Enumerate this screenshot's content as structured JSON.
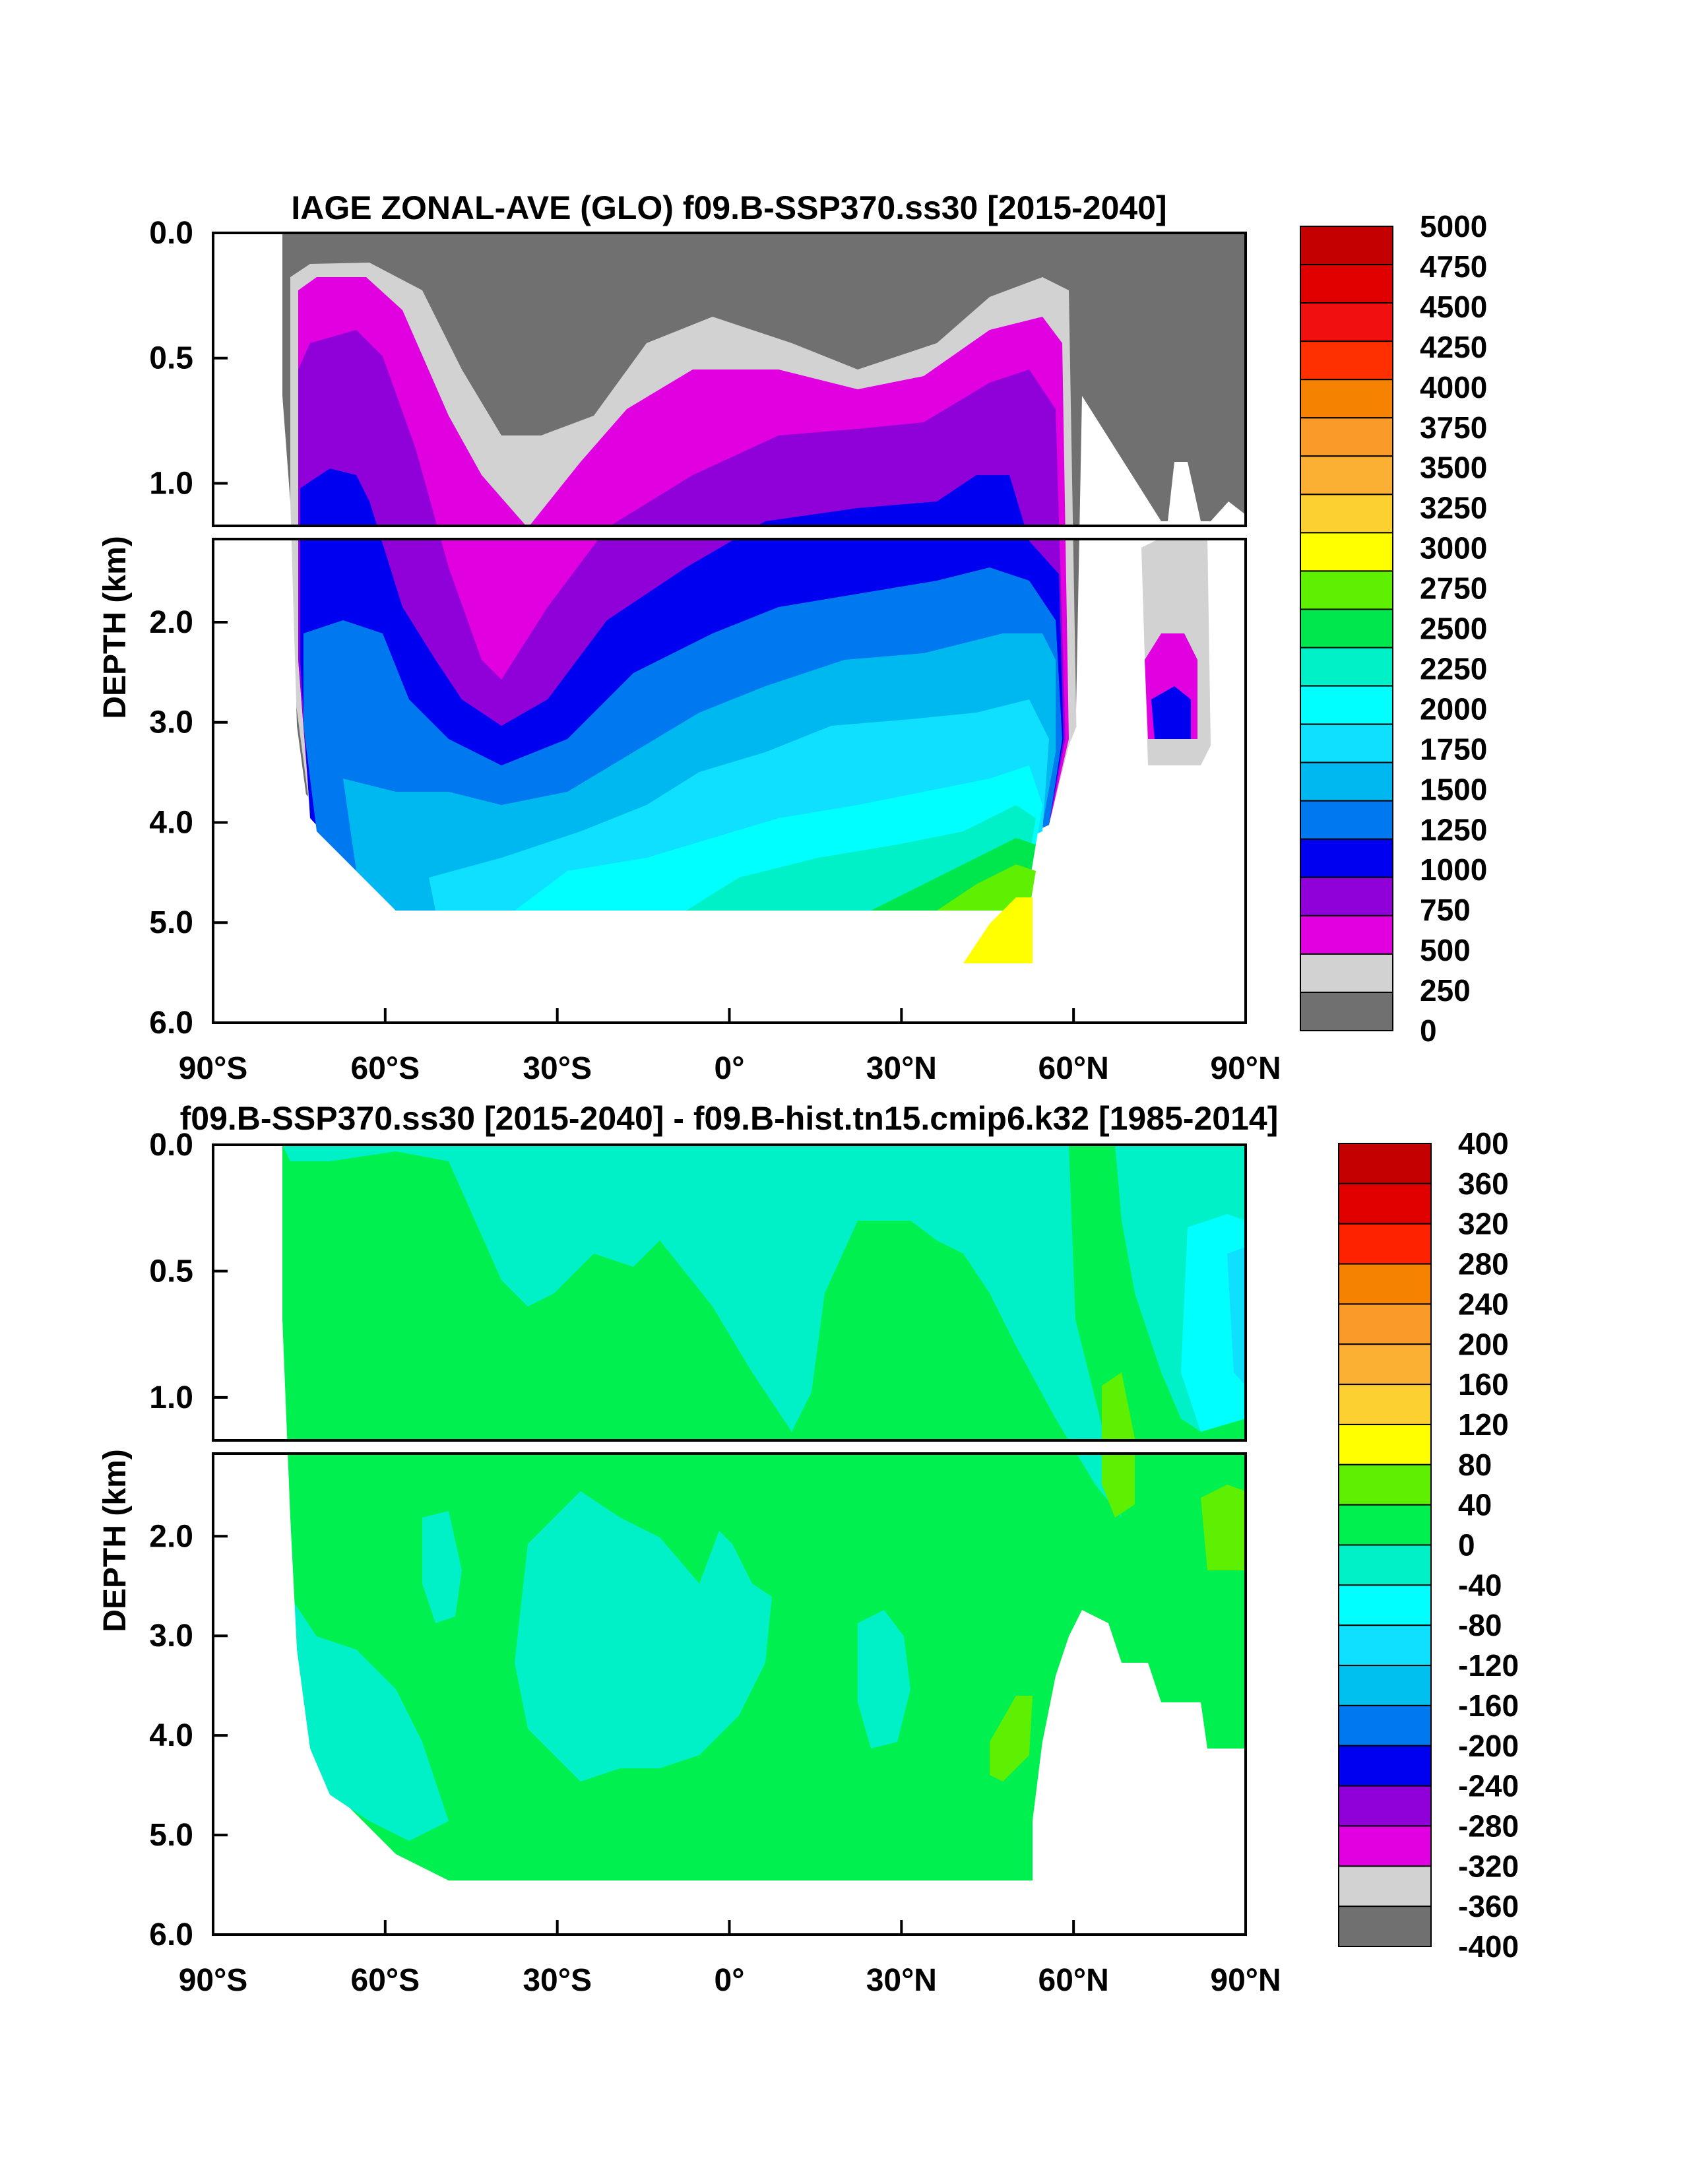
{
  "chart_data": [
    {
      "type": "heatmap",
      "title": "IAGE ZONAL-AVE (GLO) f09.B-SSP370.ss30 [2015-2040]",
      "xlabel": "",
      "ylabel": "DEPTH (km)",
      "xlim": [
        -90,
        90
      ],
      "ylim": [
        6.0,
        0.0
      ],
      "x_ticks": [
        "90°S",
        "60°S",
        "30°S",
        "0°",
        "30°N",
        "60°N",
        "90°N"
      ],
      "y_ticks_upper": [
        "0.0",
        "0.5",
        "1.0"
      ],
      "y_ticks_lower": [
        "2.0",
        "3.0",
        "4.0",
        "5.0",
        "6.0"
      ],
      "colorbar": {
        "levels": [
          "5000",
          "4750",
          "4500",
          "4250",
          "4000",
          "3750",
          "3500",
          "3250",
          "3000",
          "2750",
          "2500",
          "2250",
          "2000",
          "1750",
          "1500",
          "1250",
          "1000",
          "750",
          "500",
          "250",
          "0"
        ],
        "colors": [
          "#c40000",
          "#e00000",
          "#f01010",
          "#ff3000",
          "#f58200",
          "#fa9a28",
          "#fbb034",
          "#fcd030",
          "#ffff00",
          "#5ef000",
          "#00e64d",
          "#00f0c8",
          "#00ffff",
          "#10e0ff",
          "#00b8f0",
          "#0078f0",
          "#0000f0",
          "#9000d8",
          "#e000e0",
          "#d2d2d2",
          "#707070"
        ]
      }
    },
    {
      "type": "heatmap",
      "title": "f09.B-SSP370.ss30 [2015-2040] - f09.B-hist.tn15.cmip6.k32 [1985-2014]",
      "xlabel": "",
      "ylabel": "DEPTH (km)",
      "xlim": [
        -90,
        90
      ],
      "ylim": [
        6.0,
        0.0
      ],
      "x_ticks": [
        "90°S",
        "60°S",
        "30°S",
        "0°",
        "30°N",
        "60°N",
        "90°N"
      ],
      "y_ticks_upper": [
        "0.0",
        "0.5",
        "1.0"
      ],
      "y_ticks_lower": [
        "2.0",
        "3.0",
        "4.0",
        "5.0",
        "6.0"
      ],
      "colorbar": {
        "levels": [
          "400",
          "360",
          "320",
          "280",
          "240",
          "200",
          "160",
          "120",
          "80",
          "40",
          "0",
          "-40",
          "-80",
          "-120",
          "-160",
          "-200",
          "-240",
          "-280",
          "-320",
          "-360",
          "-400"
        ],
        "colors": [
          "#c40000",
          "#e00000",
          "#ff2200",
          "#f58200",
          "#fa9a28",
          "#fbb034",
          "#fcd030",
          "#ffff00",
          "#5ef000",
          "#00f050",
          "#00f0c8",
          "#00ffff",
          "#10e0ff",
          "#00c0f0",
          "#0078f0",
          "#0000f0",
          "#9000d8",
          "#e000e0",
          "#d2d2d2",
          "#707070"
        ]
      }
    }
  ]
}
